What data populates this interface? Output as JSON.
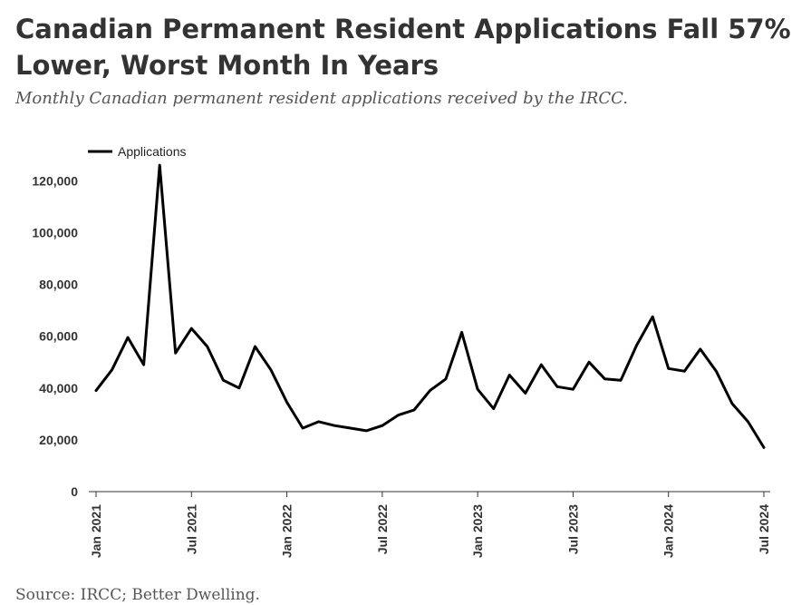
{
  "header": {
    "title": "Canadian Permanent Resident Applications Fall 57% Lower, Worst Month In Years",
    "subtitle": "Monthly Canadian permanent resident applications received by the IRCC."
  },
  "footer": {
    "source": "Source: IRCC; Better Dwelling."
  },
  "colors": {
    "line": "#000000",
    "axis": "#333333",
    "text": "#333333"
  },
  "chart_data": {
    "type": "line",
    "title": "Canadian Permanent Resident Applications Fall 57% Lower, Worst Month In Years",
    "subtitle": "Monthly Canadian permanent resident applications received by the IRCC.",
    "xlabel": "",
    "ylabel": "",
    "ylim": [
      0,
      125000
    ],
    "grid": false,
    "legend_position": "top-left",
    "y_ticks": [
      {
        "value": 0,
        "label": "0"
      },
      {
        "value": 20000,
        "label": "20,000"
      },
      {
        "value": 40000,
        "label": "40,000"
      },
      {
        "value": 60000,
        "label": "60,000"
      },
      {
        "value": 80000,
        "label": "80,000"
      },
      {
        "value": 100000,
        "label": "100,000"
      },
      {
        "value": 120000,
        "label": "120,000"
      }
    ],
    "x_ticks": [
      {
        "index": 0,
        "label": "Jan 2021"
      },
      {
        "index": 6,
        "label": "Jul 2021"
      },
      {
        "index": 12,
        "label": "Jan 2022"
      },
      {
        "index": 18,
        "label": "Jul 2022"
      },
      {
        "index": 24,
        "label": "Jan 2023"
      },
      {
        "index": 30,
        "label": "Jul 2023"
      },
      {
        "index": 36,
        "label": "Jan 2024"
      },
      {
        "index": 42,
        "label": "Jul 2024"
      }
    ],
    "x": [
      "2021-01",
      "2021-02",
      "2021-03",
      "2021-04",
      "2021-05",
      "2021-06",
      "2021-07",
      "2021-08",
      "2021-09",
      "2021-10",
      "2021-11",
      "2021-12",
      "2022-01",
      "2022-02",
      "2022-03",
      "2022-04",
      "2022-05",
      "2022-06",
      "2022-07",
      "2022-08",
      "2022-09",
      "2022-10",
      "2022-11",
      "2022-12",
      "2023-01",
      "2023-02",
      "2023-03",
      "2023-04",
      "2023-05",
      "2023-06",
      "2023-07",
      "2023-08",
      "2023-09",
      "2023-10",
      "2023-11",
      "2023-12",
      "2024-01",
      "2024-02",
      "2024-03",
      "2024-04",
      "2024-05",
      "2024-06",
      "2024-07"
    ],
    "series": [
      {
        "name": "Applications",
        "values": [
          39000,
          47000,
          59500,
          49000,
          126000,
          53500,
          63000,
          56000,
          43000,
          40000,
          56000,
          47000,
          34500,
          24500,
          27000,
          25500,
          24500,
          23500,
          25500,
          29500,
          31500,
          39000,
          43500,
          61500,
          39500,
          32000,
          45000,
          38000,
          49000,
          40500,
          39500,
          50000,
          43500,
          43000,
          56500,
          67500,
          47500,
          46500,
          55000,
          46500,
          34000,
          27000,
          17000
        ]
      }
    ]
  }
}
